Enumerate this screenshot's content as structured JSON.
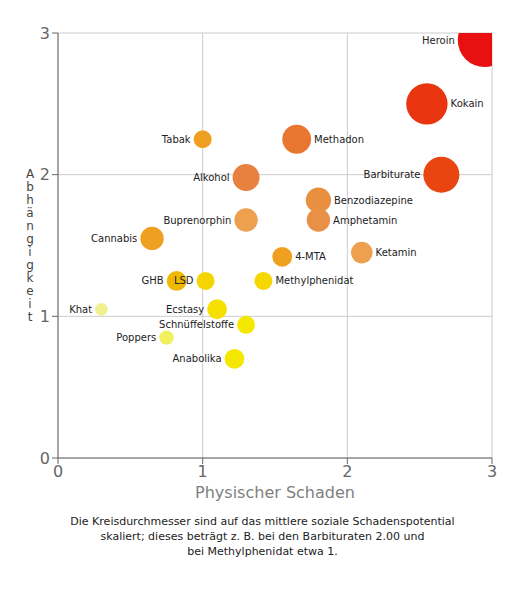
{
  "chart_data": {
    "type": "scatter",
    "xlabel": "Physischer Schaden",
    "ylabel": "Abhängigkeit",
    "caption": "Die Kreisdurchmesser sind auf das mittlere soziale Schadenspotential\nskaliert; dieses beträgt z. B. bei den Barbituraten 2.00 und\nbei Methylphenidat etwa 1.",
    "xlim": [
      0,
      3
    ],
    "ylim": [
      0,
      3
    ],
    "xticks": [
      0,
      1,
      2,
      3
    ],
    "yticks": [
      0,
      1,
      2,
      3
    ],
    "grid": true,
    "annotations": [
      "Heroin",
      "Kokain",
      "Barbiturate",
      "Methadon",
      "Alkohol",
      "Benzodiazepine",
      "Amphetamin",
      "Ketamin",
      "Buprenorphin",
      "Cannabis",
      "Tabak",
      "4-MTA",
      "GHB",
      "LSD",
      "Methylphenidat",
      "Ecstasy",
      "Schnüffelstoffe",
      "Poppers",
      "Khat",
      "Anabolika"
    ],
    "x": [
      2.95,
      2.55,
      2.65,
      1.65,
      1.3,
      1.8,
      1.8,
      2.1,
      1.3,
      0.65,
      1.0,
      1.55,
      0.82,
      1.02,
      1.42,
      1.1,
      1.3,
      0.75,
      0.3,
      1.22
    ],
    "values": [
      2.95,
      2.5,
      2.0,
      2.25,
      1.98,
      1.82,
      1.68,
      1.45,
      1.68,
      1.55,
      2.25,
      1.42,
      1.25,
      1.25,
      1.25,
      1.05,
      0.94,
      0.85,
      1.05,
      0.7
    ],
    "sizes": [
      3.0,
      2.3,
      2.0,
      1.6,
      1.5,
      1.4,
      1.3,
      1.2,
      1.3,
      1.3,
      1.0,
      1.1,
      1.1,
      1.0,
      1.0,
      1.1,
      1.0,
      0.8,
      0.7,
      1.1
    ],
    "colors": [
      "#e81010",
      "#e83510",
      "#e84510",
      "#e87530",
      "#e88040",
      "#e89040",
      "#e89045",
      "#eda050",
      "#eda050",
      "#f0a020",
      "#f0a020",
      "#f0a020",
      "#f0b800",
      "#f5d500",
      "#f5d800",
      "#f5e000",
      "#f5e800",
      "#f0f060",
      "#f0f090",
      "#f5e800"
    ]
  }
}
